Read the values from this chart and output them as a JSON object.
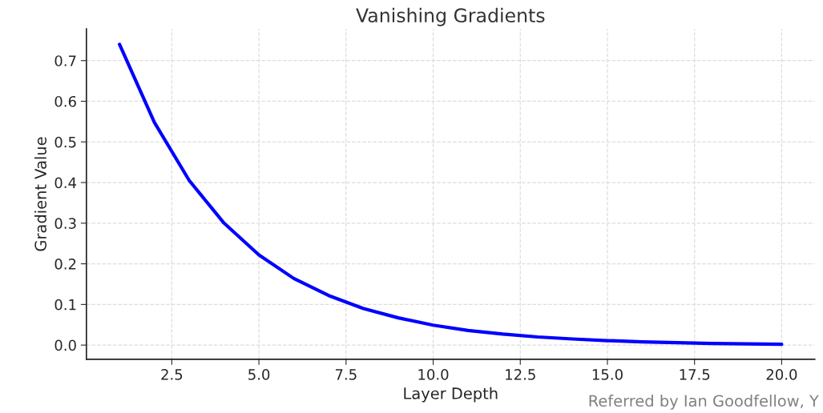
{
  "chart_data": {
    "type": "line",
    "title": "Vanishing Gradients",
    "xlabel": "Layer Depth",
    "ylabel": "Gradient Value",
    "x": [
      1,
      2,
      3,
      4,
      5,
      6,
      7,
      8,
      9,
      10,
      11,
      12,
      13,
      14,
      15,
      16,
      17,
      18,
      19,
      20
    ],
    "series": [
      {
        "color": "#0000ff",
        "values": [
          0.74,
          0.548,
          0.405,
          0.3,
          0.222,
          0.164,
          0.122,
          0.09,
          0.067,
          0.049,
          0.036,
          0.027,
          0.02,
          0.015,
          0.011,
          0.008,
          0.006,
          0.004,
          0.003,
          0.002
        ]
      }
    ],
    "xlim": [
      0.05,
      20.95
    ],
    "xticks": [
      {
        "value": 2.5,
        "label": "2.5"
      },
      {
        "value": 5,
        "label": "5.0"
      },
      {
        "value": 7.5,
        "label": "7.5"
      },
      {
        "value": 10,
        "label": "10.0"
      },
      {
        "value": 12.5,
        "label": "12.5"
      },
      {
        "value": 15,
        "label": "15.0"
      },
      {
        "value": 17.5,
        "label": "17.5"
      },
      {
        "value": 20,
        "label": "20.0"
      }
    ],
    "ylim": [
      -0.035,
      0.778
    ],
    "yticks": [
      {
        "value": 0,
        "label": "0.0"
      },
      0.1,
      0.2,
      0.3,
      0.4,
      0.5,
      0.6,
      0.7
    ],
    "grid": true,
    "line_style": "solid",
    "marker": "none",
    "annotations": [
      "Referred by Ian Goodfellow, Y"
    ]
  }
}
